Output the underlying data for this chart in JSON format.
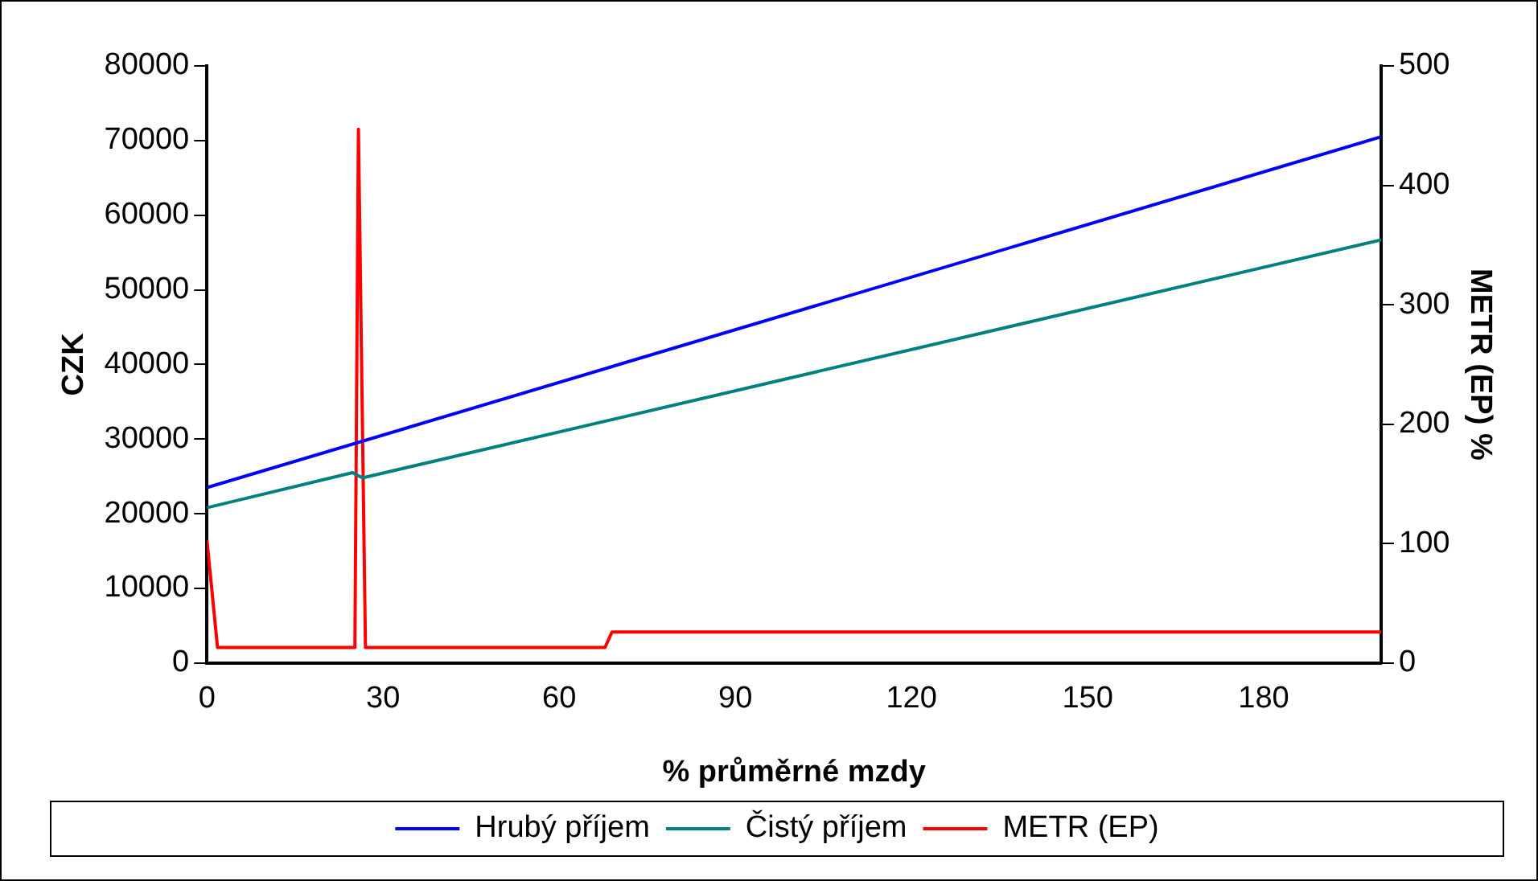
{
  "chart_data": {
    "type": "line",
    "xlabel": "% průměrné mzdy",
    "ylabel": "CZK",
    "y2label": "METR (EP) %",
    "xlim": [
      0,
      200
    ],
    "xticks": [
      0,
      30,
      60,
      90,
      120,
      150,
      180
    ],
    "ylim": [
      0,
      80000
    ],
    "yticks": [
      0,
      10000,
      20000,
      30000,
      40000,
      50000,
      60000,
      70000,
      80000
    ],
    "y2lim": [
      0,
      500
    ],
    "y2ticks": [
      0,
      100,
      200,
      300,
      400,
      500
    ],
    "grid": false,
    "legend": "bottom",
    "marker": "none",
    "line_style": "solid",
    "series": [
      {
        "name": "Hrubý příjem",
        "color": "#0000ff",
        "x": [
          0,
          200
        ],
        "values": [
          23500,
          70500
        ]
      },
      {
        "name": "Čistý příjem",
        "color": "#008080",
        "x": [
          0,
          24.8,
          26.5,
          200
        ],
        "values": [
          20800,
          25500,
          24800,
          56700
        ]
      },
      {
        "name": "METR (EP)",
        "color": "#ff0000",
        "axis": "y2",
        "x": [
          0,
          1.8,
          25.2,
          25.8,
          27,
          67.8,
          69,
          200
        ],
        "values": [
          103,
          13,
          13,
          447,
          13,
          13,
          26,
          26
        ]
      }
    ]
  }
}
